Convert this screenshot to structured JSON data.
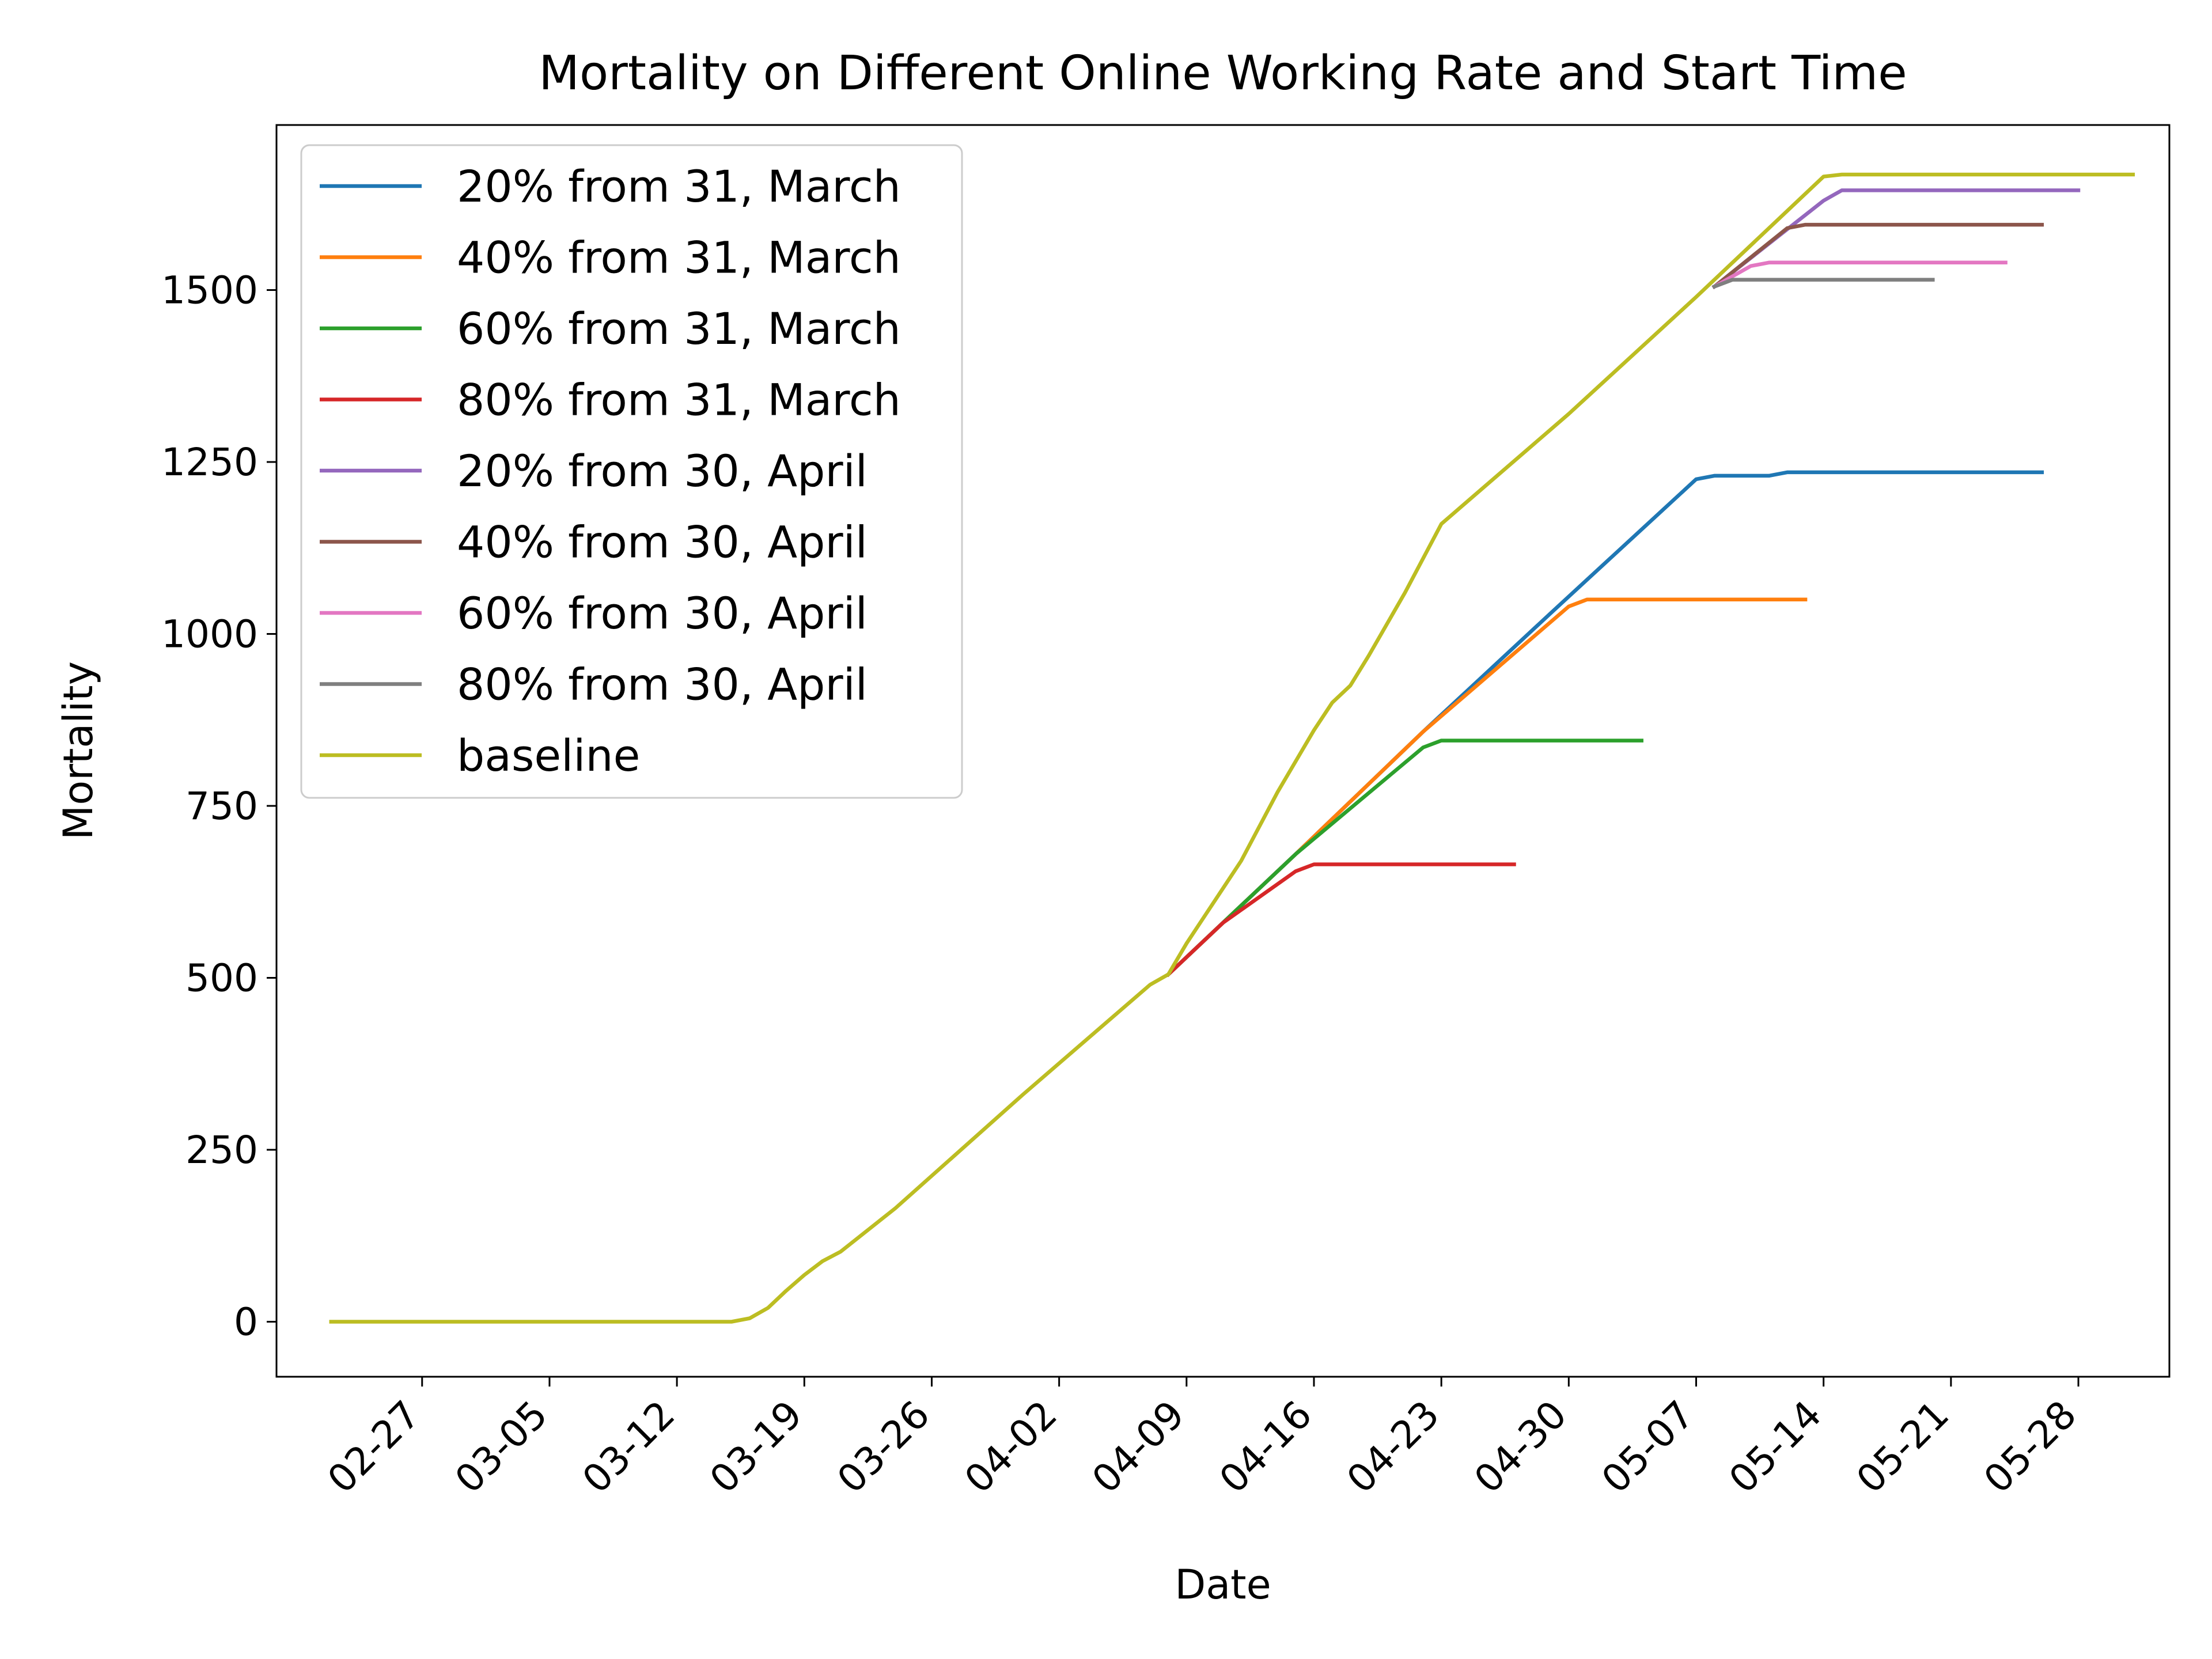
{
  "chart_data": {
    "type": "line",
    "title": "Mortality on Different Online Working Rate and Start Time",
    "xlabel": "Date",
    "ylabel": "Mortality",
    "x_axis": "date",
    "year": 2020,
    "xlim": [
      "2020-02-19",
      "2020-06-02"
    ],
    "ylim": [
      -80,
      1740
    ],
    "xticks": [
      "02-27",
      "03-05",
      "03-12",
      "03-19",
      "03-26",
      "04-02",
      "04-09",
      "04-16",
      "04-23",
      "04-30",
      "05-07",
      "05-14",
      "05-21",
      "05-28"
    ],
    "yticks": [
      0,
      250,
      500,
      750,
      1000,
      1250,
      1500
    ],
    "grid": false,
    "legend_position": "upper left",
    "series": [
      {
        "name": "20% from 31, March",
        "color": "#1f77b4",
        "points": [
          [
            "2020-04-08",
            505
          ],
          [
            "2020-04-15",
            680
          ],
          [
            "2020-04-22",
            858
          ],
          [
            "2020-04-29",
            1030
          ],
          [
            "2020-05-07",
            1225
          ],
          [
            "2020-05-08",
            1230
          ],
          [
            "2020-05-11",
            1230
          ],
          [
            "2020-05-12",
            1235
          ],
          [
            "2020-05-26",
            1235
          ]
        ]
      },
      {
        "name": "40% from 31, March",
        "color": "#ff7f0e",
        "points": [
          [
            "2020-04-08",
            505
          ],
          [
            "2020-04-15",
            680
          ],
          [
            "2020-04-22",
            858
          ],
          [
            "2020-04-30",
            1040
          ],
          [
            "2020-05-01",
            1050
          ],
          [
            "2020-05-13",
            1050
          ]
        ]
      },
      {
        "name": "60% from 31, March",
        "color": "#2ca02c",
        "points": [
          [
            "2020-04-08",
            505
          ],
          [
            "2020-04-15",
            680
          ],
          [
            "2020-04-22",
            835
          ],
          [
            "2020-04-23",
            845
          ],
          [
            "2020-05-04",
            845
          ]
        ]
      },
      {
        "name": "80% from 31, March",
        "color": "#d62728",
        "points": [
          [
            "2020-04-08",
            505
          ],
          [
            "2020-04-11",
            580
          ],
          [
            "2020-04-15",
            655
          ],
          [
            "2020-04-16",
            665
          ],
          [
            "2020-04-27",
            665
          ]
        ]
      },
      {
        "name": "20% from 30, April",
        "color": "#9467bd",
        "points": [
          [
            "2020-05-08",
            1505
          ],
          [
            "2020-05-14",
            1630
          ],
          [
            "2020-05-15",
            1645
          ],
          [
            "2020-05-28",
            1645
          ]
        ]
      },
      {
        "name": "40% from 30, April",
        "color": "#8c564b",
        "points": [
          [
            "2020-05-08",
            1505
          ],
          [
            "2020-05-12",
            1590
          ],
          [
            "2020-05-13",
            1595
          ],
          [
            "2020-05-26",
            1595
          ]
        ]
      },
      {
        "name": "60% from 30, April",
        "color": "#e377c2",
        "points": [
          [
            "2020-05-08",
            1505
          ],
          [
            "2020-05-10",
            1535
          ],
          [
            "2020-05-11",
            1540
          ],
          [
            "2020-05-24",
            1540
          ]
        ]
      },
      {
        "name": "80% from 30, April",
        "color": "#7f7f7f",
        "points": [
          [
            "2020-05-08",
            1505
          ],
          [
            "2020-05-09",
            1515
          ],
          [
            "2020-05-20",
            1515
          ]
        ]
      },
      {
        "name": "baseline",
        "color": "#bcbd22",
        "points": [
          [
            "2020-02-22",
            0
          ],
          [
            "2020-03-15",
            0
          ],
          [
            "2020-03-16",
            5
          ],
          [
            "2020-03-17",
            20
          ],
          [
            "2020-03-18",
            45
          ],
          [
            "2020-03-19",
            68
          ],
          [
            "2020-03-20",
            88
          ],
          [
            "2020-03-21",
            102
          ],
          [
            "2020-03-24",
            165
          ],
          [
            "2020-03-31",
            330
          ],
          [
            "2020-04-07",
            490
          ],
          [
            "2020-04-08",
            505
          ],
          [
            "2020-04-09",
            550
          ],
          [
            "2020-04-10",
            590
          ],
          [
            "2020-04-11",
            630
          ],
          [
            "2020-04-12",
            670
          ],
          [
            "2020-04-14",
            770
          ],
          [
            "2020-04-16",
            860
          ],
          [
            "2020-04-17",
            900
          ],
          [
            "2020-04-18",
            925
          ],
          [
            "2020-04-19",
            968
          ],
          [
            "2020-04-21",
            1060
          ],
          [
            "2020-04-23",
            1160
          ],
          [
            "2020-04-30",
            1320
          ],
          [
            "2020-05-07",
            1490
          ],
          [
            "2020-05-14",
            1665
          ],
          [
            "2020-05-15",
            1668
          ],
          [
            "2020-05-31",
            1668
          ]
        ]
      }
    ]
  }
}
